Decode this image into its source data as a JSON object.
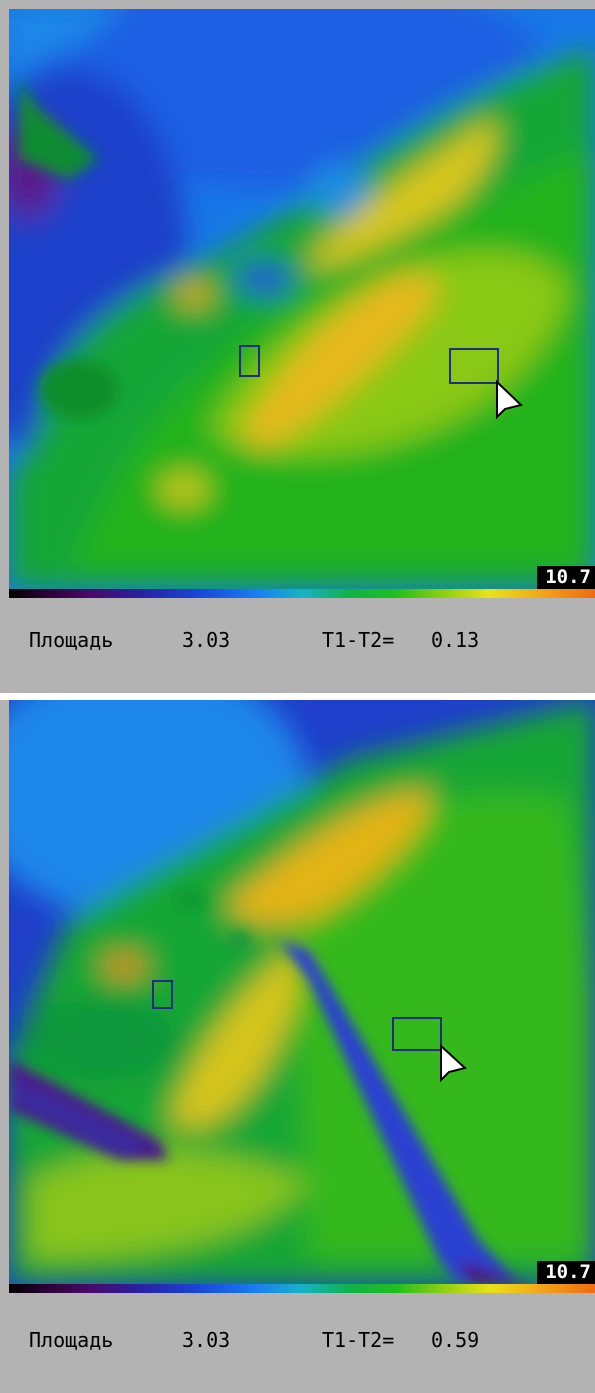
{
  "panels": [
    {
      "scale_max": "10.7",
      "area_label": "Площадь",
      "area_value": "3.03",
      "diff_label": "T1-T2=",
      "diff_value": "0.13"
    },
    {
      "scale_max": "10.7",
      "area_label": "Площадь",
      "area_value": "3.03",
      "diff_label": "T1-T2=",
      "diff_value": "0.59"
    }
  ],
  "colors": {
    "palette_background": "#b3b3b3",
    "roi_outline": "#1f2f80",
    "cursor_fill": "#ffffff"
  },
  "icons": [
    "roi-small-rect",
    "roi-large-rect",
    "cursor-arrow-icon"
  ]
}
